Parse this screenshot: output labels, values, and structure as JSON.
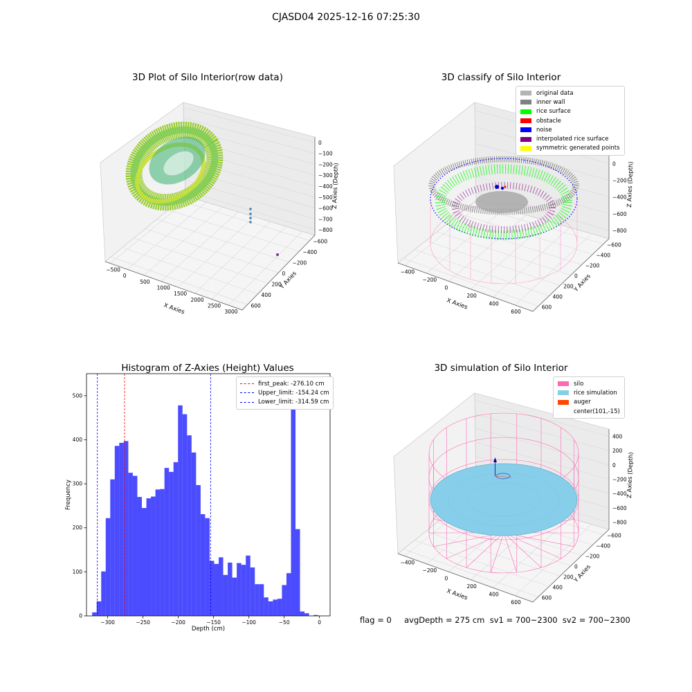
{
  "figure": {
    "suptitle": "CJASD04 2025-12-16 07:25:30",
    "footer": "flag = 0     avgDepth = 275 cm  sv1 = 700~2300  sv2 = 700~2300"
  },
  "colors": {
    "silo": "#ff69b4",
    "rice_simulation": "#87ceeb",
    "auger": "#ff4500",
    "histogram_bar": "#0000ff",
    "first_peak": "#ff0000",
    "limits": "#0000ff",
    "original_data": "#b3b3b3",
    "inner_wall": "#808080",
    "rice_surface": "#00ff00",
    "obstacle": "#ff0000",
    "noise": "#0000ff",
    "interpolated_rice_surface": "#800080",
    "symmetric_generated_points": "#ffff00"
  },
  "chart_data": [
    {
      "type": "scatter",
      "title": "3D Plot of Silo Interior(row data)",
      "xlabel": "X Axies",
      "ylabel": "Y Axies",
      "zlabel": "Z Axies (Depth)",
      "x_ticks": [
        "−500",
        "0",
        "500",
        "1000",
        "1500",
        "2000",
        "2500",
        "3000"
      ],
      "y_ticks": [
        "−600",
        "−400",
        "−200",
        "0",
        "200",
        "400",
        "600"
      ],
      "z_ticks": [
        "0",
        "−100",
        "−200",
        "−300",
        "−400",
        "−500",
        "−600",
        "−700",
        "−800"
      ],
      "xlim": [
        -600,
        3000
      ],
      "ylim": [
        -650,
        650
      ],
      "zlim": [
        -850,
        50
      ]
    },
    {
      "type": "scatter",
      "title": "3D classify of Silo Interior",
      "xlabel": "X Axies",
      "ylabel": "Y Axies",
      "zlabel": "Z Axies (Depth)",
      "x_ticks": [
        "−400",
        "−200",
        "0",
        "200",
        "400",
        "600"
      ],
      "y_ticks": [
        "−600",
        "−400",
        "−200",
        "0",
        "200",
        "400",
        "600"
      ],
      "z_ticks": [
        "200",
        "0",
        "−200",
        "−400",
        "−600",
        "−800"
      ],
      "legend_position": "top-right",
      "legend": [
        {
          "label": "original data",
          "color": "#b3b3b3"
        },
        {
          "label": "inner wall",
          "color": "#808080"
        },
        {
          "label": "rice surface",
          "color": "#00ff00"
        },
        {
          "label": "obstacle",
          "color": "#ff0000"
        },
        {
          "label": "noise",
          "color": "#0000ff"
        },
        {
          "label": "interpolated rice surface",
          "color": "#800080"
        },
        {
          "label": "symmetric generated points",
          "color": "#ffff00"
        }
      ]
    },
    {
      "type": "bar",
      "title": "Histogram of Z-Axies (Height) Values",
      "xlabel": "Depth (cm)",
      "ylabel": "Frequency",
      "xlim": [
        -330,
        15
      ],
      "ylim": [
        0,
        550
      ],
      "grid": false,
      "x_ticks": [
        -300,
        -250,
        -200,
        -150,
        -100,
        -50,
        0
      ],
      "x_tick_labels": [
        "−300",
        "−250",
        "−200",
        "−150",
        "−100",
        "−50",
        "0"
      ],
      "y_ticks": [
        0,
        100,
        200,
        300,
        400,
        500
      ],
      "bin_start": -322,
      "bin_width": 6.4,
      "counts": [
        8,
        33,
        101,
        222,
        310,
        386,
        393,
        397,
        325,
        318,
        270,
        245,
        267,
        271,
        287,
        288,
        336,
        327,
        349,
        478,
        458,
        410,
        371,
        297,
        231,
        222,
        125,
        118,
        133,
        93,
        121,
        87,
        120,
        116,
        137,
        110,
        72,
        72,
        42,
        33,
        37,
        39,
        70,
        97,
        515,
        197,
        10,
        6,
        0,
        2
      ],
      "legend_position": "top-right",
      "lines": [
        {
          "label": "first_peak: -276.10 cm",
          "x": -276.1,
          "color": "#ff0000"
        },
        {
          "label": "Upper_limit: -154.24 cm",
          "x": -154.24,
          "color": "#0000ff"
        },
        {
          "label": "Lower_limit: -314.59 cm",
          "x": -314.59,
          "color": "#0000ff"
        }
      ]
    },
    {
      "type": "scatter",
      "title": "3D simulation of Silo Interior",
      "xlabel": "X Axies",
      "ylabel": "Y Axies",
      "zlabel": "Z Axies (Depth)",
      "x_ticks": [
        "−400",
        "−200",
        "0",
        "200",
        "400",
        "600"
      ],
      "y_ticks": [
        "−600",
        "−400",
        "−200",
        "0",
        "200",
        "400",
        "600"
      ],
      "z_ticks": [
        "400",
        "200",
        "0",
        "−200",
        "−400",
        "−600",
        "−800"
      ],
      "legend_position": "top-right",
      "legend": [
        {
          "label": "silo",
          "color": "#ff69b4"
        },
        {
          "label": "rice simulation",
          "color": "#87ceeb"
        },
        {
          "label": "auger",
          "color": "#ff4500"
        },
        {
          "label": "center(101,-15)",
          "color": ""
        }
      ]
    }
  ]
}
